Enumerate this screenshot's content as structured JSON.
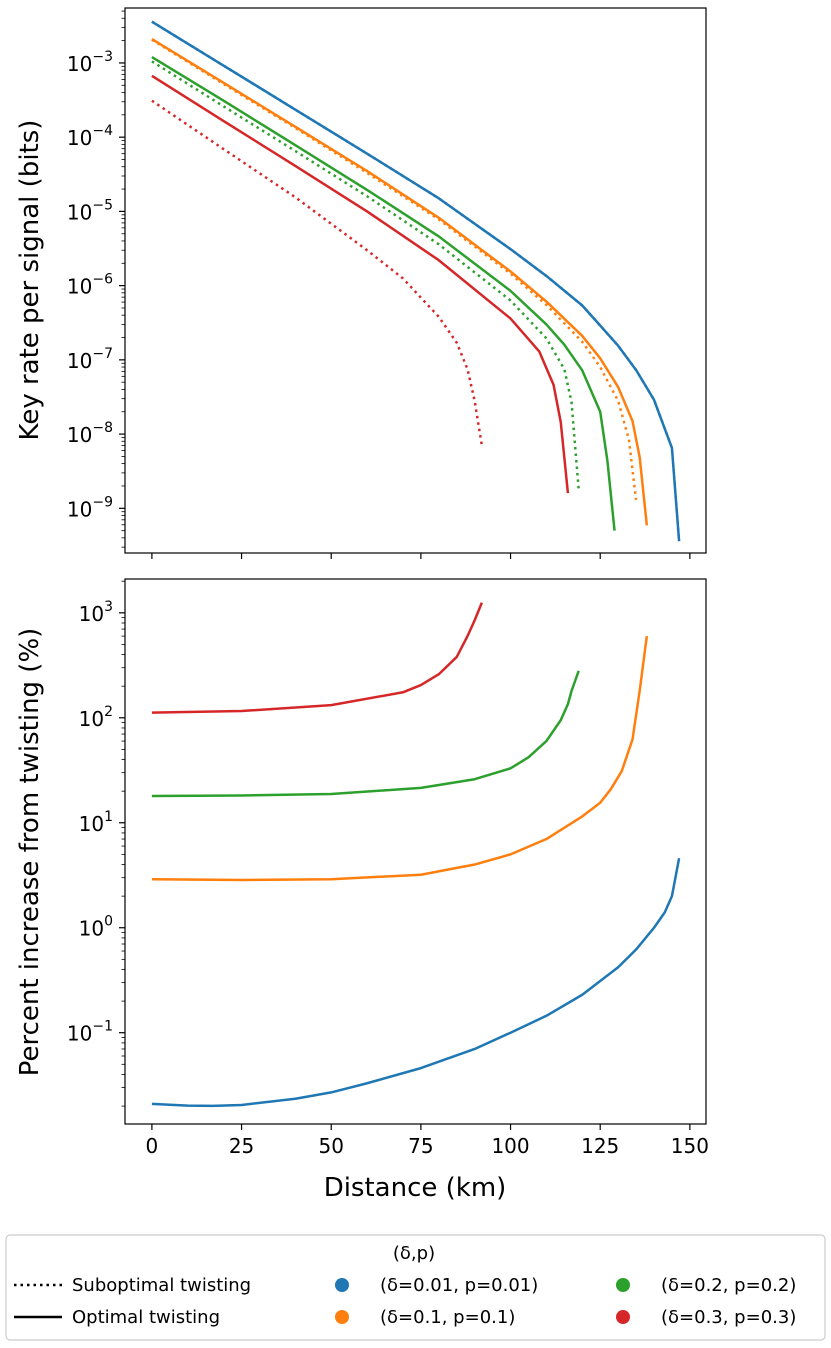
{
  "chart_data": [
    {
      "type": "line",
      "panel": "top",
      "title": "",
      "xlabel": "",
      "ylabel": "Key rate per signal (bits)",
      "yscale": "log",
      "xlim": [
        -7.5,
        154.5
      ],
      "ylim": [
        2.5e-10,
        0.0055
      ],
      "x_ticks": [
        0,
        25,
        50,
        75,
        100,
        125,
        150
      ],
      "y_ticks": [
        {
          "value": 1e-09,
          "base": "10",
          "exp": "−9"
        },
        {
          "value": 1e-08,
          "base": "10",
          "exp": "−8"
        },
        {
          "value": 1e-07,
          "base": "10",
          "exp": "−7"
        },
        {
          "value": 1e-06,
          "base": "10",
          "exp": "−6"
        },
        {
          "value": 1e-05,
          "base": "10",
          "exp": "−5"
        },
        {
          "value": 0.0001,
          "base": "10",
          "exp": "−4"
        },
        {
          "value": 0.001,
          "base": "10",
          "exp": "−3"
        }
      ],
      "series": [
        {
          "name": "(δ=0.01, p=0.01) optimal",
          "color": "#1f77b4",
          "style": "solid",
          "x": [
            0,
            20,
            40,
            60,
            80,
            100,
            110,
            120,
            125,
            130,
            135,
            140,
            145,
            147
          ],
          "y": [
            0.0036,
            0.00092,
            0.000235,
            6e-05,
            1.5e-05,
            3.1e-06,
            1.35e-06,
            5.4e-07,
            2.9e-07,
            1.55e-07,
            7.3e-08,
            2.9e-08,
            6.5e-09,
            3.6e-10
          ]
        },
        {
          "name": "(δ=0.01, p=0.01) suboptimal",
          "color": "#1f77b4",
          "style": "dotted",
          "x": [
            0,
            20,
            40,
            60,
            80,
            100,
            110,
            120,
            125,
            130,
            135,
            140,
            145,
            147
          ],
          "y": [
            0.0036,
            0.00092,
            0.000235,
            6e-05,
            1.5e-05,
            3.1e-06,
            1.35e-06,
            5.4e-07,
            2.9e-07,
            1.55e-07,
            7.3e-08,
            2.9e-08,
            6.5e-09,
            3.6e-10
          ]
        },
        {
          "name": "(δ=0.1, p=0.1) optimal",
          "color": "#ff7f0e",
          "style": "solid",
          "x": [
            0,
            20,
            40,
            60,
            80,
            100,
            110,
            120,
            125,
            130,
            134,
            136,
            138
          ],
          "y": [
            0.0021,
            0.00054,
            0.000138,
            3.5e-05,
            8.2e-06,
            1.55e-06,
            6.1e-07,
            2.1e-07,
            1.05e-07,
            4.3e-08,
            1.5e-08,
            4.9e-09,
            5.9e-10
          ]
        },
        {
          "name": "(δ=0.1, p=0.1) suboptimal",
          "color": "#ff7f0e",
          "style": "dotted",
          "x": [
            0,
            20,
            40,
            60,
            80,
            100,
            110,
            120,
            125,
            130,
            133,
            135
          ],
          "y": [
            0.00205,
            0.00052,
            0.000133,
            3.3e-05,
            7.8e-06,
            1.45e-06,
            5.5e-07,
            1.75e-07,
            8e-08,
            2.8e-08,
            8.5e-09,
            1.3e-09
          ]
        },
        {
          "name": "(δ=0.2, p=0.2) optimal",
          "color": "#2ca02c",
          "style": "solid",
          "x": [
            0,
            20,
            40,
            60,
            80,
            100,
            110,
            115,
            120,
            125,
            127,
            129
          ],
          "y": [
            0.0012,
            0.00031,
            7.8e-05,
            1.95e-05,
            4.6e-06,
            8.5e-07,
            3e-07,
            1.6e-07,
            7.2e-08,
            2e-08,
            4.4e-09,
            5e-10
          ]
        },
        {
          "name": "(δ=0.2, p=0.2) suboptimal",
          "color": "#2ca02c",
          "style": "dotted",
          "x": [
            0,
            20,
            40,
            60,
            80,
            100,
            110,
            115,
            117,
            119
          ],
          "y": [
            0.00105,
            0.00026,
            6.5e-05,
            1.6e-05,
            3.6e-06,
            6.3e-07,
            1.95e-07,
            7.5e-08,
            2.7e-08,
            1.8e-09
          ]
        },
        {
          "name": "(δ=0.3, p=0.3) optimal",
          "color": "#d62728",
          "style": "solid",
          "x": [
            0,
            20,
            40,
            60,
            80,
            100,
            108,
            112,
            114,
            116
          ],
          "y": [
            0.00067,
            0.000165,
            4.1e-05,
            1e-05,
            2.2e-06,
            3.6e-07,
            1.3e-07,
            4.6e-08,
            1.45e-08,
            1.6e-09
          ]
        },
        {
          "name": "(δ=0.3, p=0.3) suboptimal",
          "color": "#d62728",
          "style": "dotted",
          "x": [
            0,
            20,
            40,
            60,
            70,
            80,
            85,
            88,
            90,
            92
          ],
          "y": [
            0.00031,
            6.9e-05,
            1.55e-05,
            3e-06,
            1.25e-06,
            3.8e-07,
            1.7e-07,
            7.5e-08,
            2.8e-08,
            7e-09
          ]
        }
      ]
    },
    {
      "type": "line",
      "panel": "bottom",
      "title": "",
      "xlabel": "Distance (km)",
      "ylabel": "Percent increase from twisting (%)",
      "yscale": "log",
      "xlim": [
        -7.5,
        154.5
      ],
      "ylim": [
        0.0135,
        2100
      ],
      "x_ticks": [
        0,
        25,
        50,
        75,
        100,
        125,
        150
      ],
      "x_tick_labels": [
        "0",
        "25",
        "50",
        "75",
        "100",
        "125",
        "150"
      ],
      "y_ticks": [
        {
          "value": 0.1,
          "base": "10",
          "exp": "−1"
        },
        {
          "value": 1,
          "base": "10",
          "exp": "0"
        },
        {
          "value": 10,
          "base": "10",
          "exp": "1"
        },
        {
          "value": 100,
          "base": "10",
          "exp": "2"
        },
        {
          "value": 1000,
          "base": "10",
          "exp": "3"
        }
      ],
      "series": [
        {
          "name": "(δ=0.01, p=0.01)",
          "color": "#1f77b4",
          "style": "solid",
          "x": [
            0,
            10,
            17,
            25,
            40,
            50,
            60,
            75,
            90,
            100,
            110,
            120,
            130,
            135,
            140,
            143,
            145,
            147
          ],
          "y": [
            0.021,
            0.0202,
            0.0201,
            0.0205,
            0.0235,
            0.027,
            0.033,
            0.046,
            0.07,
            0.1,
            0.145,
            0.23,
            0.42,
            0.62,
            1.0,
            1.4,
            2.0,
            4.6
          ]
        },
        {
          "name": "(δ=0.1, p=0.1)",
          "color": "#ff7f0e",
          "style": "solid",
          "x": [
            0,
            25,
            50,
            75,
            90,
            100,
            110,
            120,
            125,
            128,
            131,
            134,
            136,
            138
          ],
          "y": [
            2.9,
            2.85,
            2.9,
            3.2,
            4.0,
            5.0,
            7.0,
            11.5,
            15.5,
            21,
            31,
            62,
            180,
            600
          ]
        },
        {
          "name": "(δ=0.2, p=0.2)",
          "color": "#2ca02c",
          "style": "solid",
          "x": [
            0,
            25,
            50,
            75,
            90,
            100,
            105,
            110,
            114,
            116,
            117,
            119
          ],
          "y": [
            18,
            18.2,
            18.8,
            21.5,
            26,
            33,
            42,
            60,
            95,
            135,
            180,
            280
          ]
        },
        {
          "name": "(δ=0.3, p=0.3)",
          "color": "#d62728",
          "style": "solid",
          "x": [
            0,
            25,
            50,
            70,
            75,
            80,
            85,
            88,
            90,
            92
          ],
          "y": [
            112,
            116,
            132,
            175,
            205,
            260,
            380,
            600,
            850,
            1250
          ]
        }
      ]
    }
  ],
  "legend": {
    "title": "(δ,p)",
    "style_entries": [
      {
        "label": "Suboptimal twisting",
        "style": "dotted"
      },
      {
        "label": "Optimal twisting",
        "style": "solid"
      }
    ],
    "color_entries": [
      {
        "label": "(δ=0.01, p=0.01)",
        "color": "#1f77b4"
      },
      {
        "label": "(δ=0.1, p=0.1)",
        "color": "#ff7f0e"
      },
      {
        "label": "(δ=0.2, p=0.2)",
        "color": "#2ca02c"
      },
      {
        "label": "(δ=0.3, p=0.3)",
        "color": "#d62728"
      }
    ]
  }
}
